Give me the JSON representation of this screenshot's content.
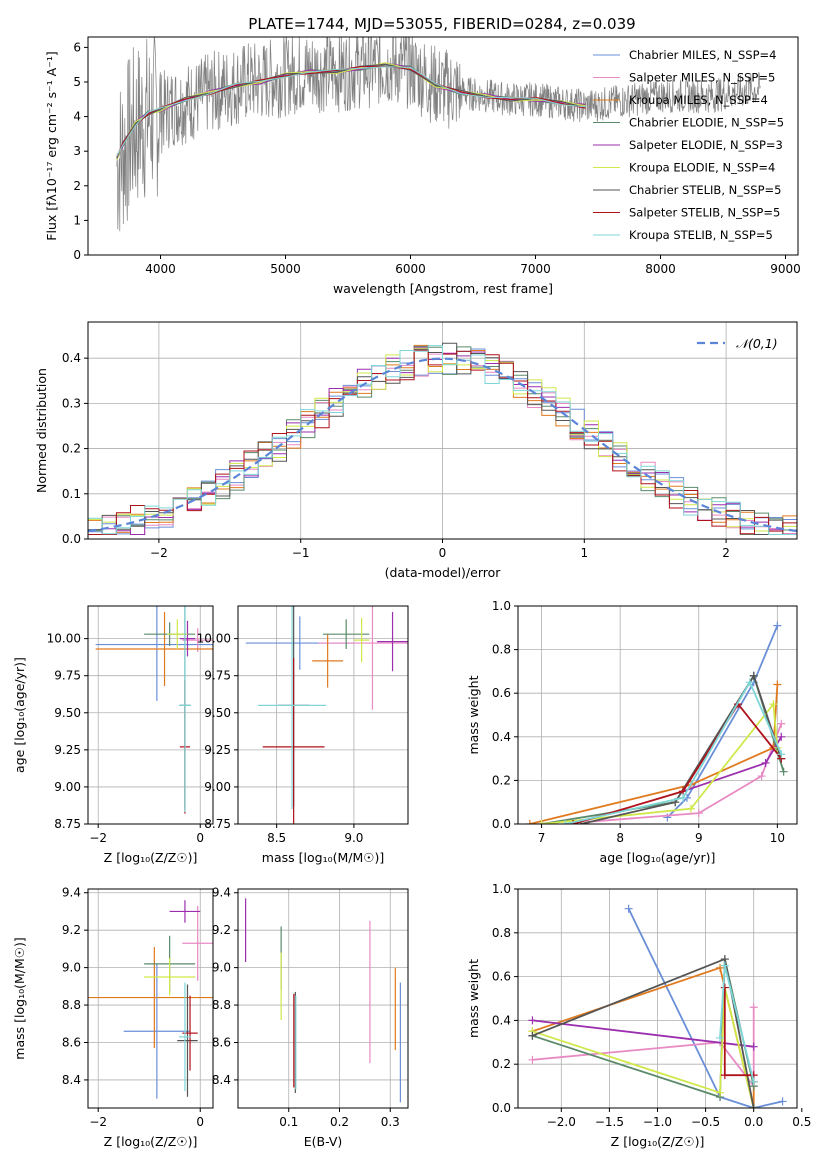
{
  "page_title": "PLATE=1744, MJD=53055, FIBERID=0284, z=0.039",
  "colors": [
    "#6a8fd8",
    "#e88ac4",
    "#e07a1e",
    "#5a8a6a",
    "#9b2fae",
    "#d0e84a",
    "#555555",
    "#b0121b",
    "#7fd6d8"
  ],
  "chart_data": [
    {
      "id": "spectrum",
      "type": "line",
      "title": "PLATE=1744, MJD=53055, FIBERID=0284, z=0.039",
      "xlabel": "wavelength [Angstrom, rest frame]",
      "ylabel": "Flux [fλ10⁻¹⁷ erg cm⁻² s⁻¹ A⁻¹]",
      "xlim": [
        3420,
        9100
      ],
      "ylim": [
        0,
        6.3
      ],
      "xticks": [
        4000,
        5000,
        6000,
        7000,
        8000,
        9000
      ],
      "xtick_labels": [
        "4000",
        "5000",
        "6000",
        "7000",
        "8000",
        "9000"
      ],
      "yticks": [
        0,
        1,
        2,
        3,
        4,
        5,
        6
      ],
      "ytick_labels": [
        "0",
        "1",
        "2",
        "3",
        "4",
        "5",
        "6"
      ],
      "legend": [
        "Chabrier MILES, N_SSP=4",
        "Salpeter MILES, N_SSP=5",
        "Kroupa MILES, N_SSP=4",
        "Chabrier ELODIE, N_SSP=5",
        "Salpeter ELODIE, N_SSP=3",
        "Kroupa ELODIE, N_SSP=4",
        "Chabrier STELIB, N_SSP=5",
        "Salpeter STELIB, N_SSP=5",
        "Kroupa STELIB, N_SSP=5"
      ],
      "legend_placement": "top-right",
      "data_color": "#808080",
      "data_x": [
        3650,
        3700,
        3800,
        3900,
        4000,
        4100,
        4200,
        4300,
        4400,
        4500,
        4600,
        4700,
        4800,
        4900,
        5000,
        5200,
        5400,
        5600,
        5800,
        6000,
        6200,
        6400,
        6600,
        6800,
        7000,
        7200,
        7400,
        7600,
        7800,
        8000,
        8200,
        8400,
        8600,
        8800
      ],
      "data_y": [
        2.6,
        3.0,
        3.7,
        4.0,
        4.1,
        4.3,
        4.4,
        4.5,
        4.7,
        4.8,
        4.9,
        5.0,
        5.0,
        5.1,
        5.2,
        5.3,
        5.3,
        5.4,
        5.5,
        5.4,
        4.9,
        4.7,
        4.6,
        4.5,
        4.5,
        4.4,
        4.3,
        4.4,
        4.5,
        4.6,
        4.6,
        4.6,
        4.7,
        4.8
      ],
      "model_x": [
        3650,
        3700,
        3800,
        3900,
        4000,
        4200,
        4400,
        4600,
        4800,
        5000,
        5200,
        5400,
        5600,
        5800,
        6000,
        6200,
        6400,
        6600,
        6800,
        7000,
        7200,
        7400
      ],
      "model_y": [
        2.8,
        3.2,
        3.8,
        4.1,
        4.2,
        4.5,
        4.7,
        4.9,
        5.0,
        5.2,
        5.3,
        5.3,
        5.4,
        5.5,
        5.4,
        4.9,
        4.7,
        4.6,
        4.5,
        4.5,
        4.4,
        4.3
      ]
    },
    {
      "id": "residuals",
      "type": "bar",
      "xlabel": "(data-model)/error",
      "ylabel": "Normed distribution",
      "xlim": [
        -2.5,
        2.5
      ],
      "ylim": [
        0,
        0.48
      ],
      "grid": true,
      "xticks": [
        -2,
        -1,
        0,
        1,
        2
      ],
      "xtick_labels": [
        "−2",
        "−1",
        "0",
        "1",
        "2"
      ],
      "yticks": [
        0,
        0.1,
        0.2,
        0.3,
        0.4
      ],
      "ytick_labels": [
        "0.0",
        "0.1",
        "0.2",
        "0.3",
        "0.4"
      ],
      "legend": [
        "𝒩(0,1)"
      ],
      "legend_placement": "top-right",
      "bin_width": 0.1
    },
    {
      "id": "age_vs_Z",
      "type": "scatter",
      "xlabel": "Z [log₁₀(Z/Z☉)]",
      "ylabel": "age  [log₁₀(age/yr)]",
      "xlim": [
        -2.2,
        0.25
      ],
      "ylim": [
        8.75,
        10.22
      ],
      "grid": true,
      "xticks": [
        -2,
        0
      ],
      "xtick_labels": [
        "−2",
        "0"
      ],
      "yticks": [
        8.75,
        9.0,
        9.25,
        9.5,
        9.75,
        10.0
      ],
      "ytick_labels": [
        "8.75",
        "9.00",
        "9.25",
        "9.50",
        "9.75",
        "10.00"
      ],
      "points": [
        {
          "x": -0.85,
          "y": 9.96,
          "xerr": 1.2,
          "yerr": 0.38,
          "c": 0
        },
        {
          "x": -0.05,
          "y": 9.99,
          "xerr": 0.3,
          "yerr": 0.08,
          "c": 1
        },
        {
          "x": -0.7,
          "y": 9.93,
          "xerr": 1.35,
          "yerr": 0.25,
          "c": 2
        },
        {
          "x": -0.6,
          "y": 10.03,
          "xerr": 0.5,
          "yerr": 0.08,
          "c": 3
        },
        {
          "x": -0.25,
          "y": 10.0,
          "xerr": 0.15,
          "yerr": 0.12,
          "c": 4
        },
        {
          "x": -0.45,
          "y": 10.03,
          "xerr": 0.2,
          "yerr": 0.1,
          "c": 5
        },
        {
          "x": -0.3,
          "y": 9.55,
          "xerr": 0.1,
          "yerr": 0.7,
          "c": 6
        },
        {
          "x": -0.3,
          "y": 9.27,
          "xerr": 0.1,
          "yerr": 0.45,
          "c": 7
        },
        {
          "x": -0.3,
          "y": 9.55,
          "xerr": 0.12,
          "yerr": 0.72,
          "c": 8
        }
      ]
    },
    {
      "id": "age_vs_mass",
      "type": "scatter",
      "xlabel": "mass [log₁₀(M/M☉)]",
      "xlim": [
        8.25,
        9.35
      ],
      "ylim": [
        8.75,
        10.22
      ],
      "grid": true,
      "xticks": [
        8.5,
        9.0
      ],
      "xtick_labels": [
        "8.5",
        "9.0"
      ],
      "yticks": [
        8.75,
        9.0,
        9.25,
        9.5,
        9.75,
        10.0
      ],
      "ytick_labels": [
        "8.75",
        "9.00",
        "9.25",
        "9.50",
        "9.75",
        "10.00"
      ],
      "points": [
        {
          "x": 8.65,
          "y": 9.97,
          "xerr": 0.35,
          "yerr": 0.18,
          "c": 0
        },
        {
          "x": 9.12,
          "y": 9.97,
          "xerr": 0.35,
          "yerr": 0.45,
          "c": 1
        },
        {
          "x": 8.83,
          "y": 9.85,
          "xerr": 0.1,
          "yerr": 0.18,
          "c": 2
        },
        {
          "x": 8.95,
          "y": 10.03,
          "xerr": 0.15,
          "yerr": 0.1,
          "c": 3
        },
        {
          "x": 9.25,
          "y": 9.98,
          "xerr": 0.1,
          "yerr": 0.2,
          "c": 4
        },
        {
          "x": 9.05,
          "y": 9.99,
          "xerr": 0.05,
          "yerr": 0.15,
          "c": 5
        },
        {
          "x": 8.61,
          "y": 9.55,
          "xerr": 0.1,
          "yerr": 0.68,
          "c": 6
        },
        {
          "x": 8.61,
          "y": 9.27,
          "xerr": 0.2,
          "yerr": 0.6,
          "c": 7
        },
        {
          "x": 8.6,
          "y": 9.55,
          "xerr": 0.22,
          "yerr": 0.7,
          "c": 8
        }
      ]
    },
    {
      "id": "massweight_vs_age",
      "type": "line",
      "xlabel": "age  [log₁₀(age/yr)]",
      "ylabel": "mass weight",
      "xlim": [
        6.7,
        10.25
      ],
      "ylim": [
        0,
        1.0
      ],
      "grid": true,
      "xticks": [
        7,
        8,
        9,
        10
      ],
      "xtick_labels": [
        "7",
        "8",
        "9",
        "10"
      ],
      "yticks": [
        0,
        0.2,
        0.4,
        0.6,
        0.8,
        1.0
      ],
      "ytick_labels": [
        "0.0",
        "0.2",
        "0.4",
        "0.6",
        "0.8",
        "1.0"
      ],
      "series": [
        {
          "c": 0,
          "x": [
            8.6,
            8.85,
            9.7,
            10.0
          ],
          "y": [
            0.03,
            0.12,
            0.65,
            0.91
          ]
        },
        {
          "c": 1,
          "x": [
            7.6,
            9.0,
            9.8,
            10.05
          ],
          "y": [
            0.01,
            0.05,
            0.22,
            0.46
          ]
        },
        {
          "c": 2,
          "x": [
            6.85,
            8.9,
            9.95,
            10.0
          ],
          "y": [
            0.0,
            0.18,
            0.35,
            0.64
          ]
        },
        {
          "c": 3,
          "x": [
            7.0,
            8.7,
            9.7,
            10.08
          ],
          "y": [
            0.0,
            0.1,
            0.68,
            0.24
          ]
        },
        {
          "c": 4,
          "x": [
            8.8,
            9.85,
            10.05
          ],
          "y": [
            0.15,
            0.28,
            0.4
          ]
        },
        {
          "c": 5,
          "x": [
            7.0,
            8.9,
            9.95,
            10.0
          ],
          "y": [
            0.0,
            0.07,
            0.55,
            0.35
          ]
        },
        {
          "c": 6,
          "x": [
            7.5,
            8.7,
            9.7,
            10.05
          ],
          "y": [
            0.0,
            0.1,
            0.68,
            0.3
          ]
        },
        {
          "c": 7,
          "x": [
            7.4,
            8.8,
            9.5,
            10.05
          ],
          "y": [
            0.0,
            0.15,
            0.55,
            0.3
          ]
        },
        {
          "c": 8,
          "x": [
            7.3,
            8.8,
            9.65,
            10.05
          ],
          "y": [
            0.0,
            0.12,
            0.65,
            0.32
          ]
        }
      ]
    },
    {
      "id": "mass_vs_Z",
      "type": "scatter",
      "xlabel": "Z [log₁₀(Z/Z☉)]",
      "ylabel": "mass [log₁₀(M/M☉)]",
      "xlim": [
        -2.2,
        0.25
      ],
      "ylim": [
        8.25,
        9.42
      ],
      "grid": true,
      "xticks": [
        -2,
        0
      ],
      "xtick_labels": [
        "−2",
        "0"
      ],
      "yticks": [
        8.4,
        8.6,
        8.8,
        9.0,
        9.2,
        9.4
      ],
      "ytick_labels": [
        "8.4",
        "8.6",
        "8.8",
        "9.0",
        "9.2",
        "9.4"
      ],
      "points": [
        {
          "x": -0.85,
          "y": 8.66,
          "xerr": 0.65,
          "yerr": 0.36,
          "c": 0
        },
        {
          "x": -0.05,
          "y": 9.13,
          "xerr": 0.3,
          "yerr": 0.2,
          "c": 1
        },
        {
          "x": -0.9,
          "y": 8.84,
          "xerr": 1.3,
          "yerr": 0.27,
          "c": 2
        },
        {
          "x": -0.6,
          "y": 9.02,
          "xerr": 0.5,
          "yerr": 0.15,
          "c": 3
        },
        {
          "x": -0.3,
          "y": 9.3,
          "xerr": 0.3,
          "yerr": 0.06,
          "c": 4
        },
        {
          "x": -0.6,
          "y": 8.95,
          "xerr": 0.5,
          "yerr": 0.1,
          "c": 5
        },
        {
          "x": -0.25,
          "y": 8.61,
          "xerr": 0.2,
          "yerr": 0.3,
          "c": 6
        },
        {
          "x": -0.2,
          "y": 8.65,
          "xerr": 0.15,
          "yerr": 0.2,
          "c": 7
        },
        {
          "x": -0.3,
          "y": 8.63,
          "xerr": 0.12,
          "yerr": 0.29,
          "c": 8
        }
      ]
    },
    {
      "id": "mass_vs_ebv",
      "type": "scatter",
      "xlabel": "E(B-V)",
      "xlim": [
        0.0,
        0.335
      ],
      "ylim": [
        8.25,
        9.42
      ],
      "grid": true,
      "xticks": [
        0.1,
        0.2,
        0.3
      ],
      "xtick_labels": [
        "0.1",
        "0.2",
        "0.3"
      ],
      "yticks": [
        8.4,
        8.6,
        8.8,
        9.0,
        9.2,
        9.4
      ],
      "ytick_labels": [
        "8.4",
        "8.6",
        "8.8",
        "9.0",
        "9.2",
        "9.4"
      ],
      "points": [
        {
          "x": 0.32,
          "y": 8.6,
          "yerr": 0.32,
          "c": 0
        },
        {
          "x": 0.26,
          "y": 8.87,
          "yerr": 0.38,
          "c": 1
        },
        {
          "x": 0.31,
          "y": 8.78,
          "yerr": 0.22,
          "c": 2
        },
        {
          "x": 0.085,
          "y": 9.05,
          "yerr": 0.17,
          "c": 3
        },
        {
          "x": 0.015,
          "y": 9.2,
          "yerr": 0.17,
          "c": 4
        },
        {
          "x": 0.085,
          "y": 8.9,
          "yerr": 0.18,
          "c": 5
        },
        {
          "x": 0.113,
          "y": 8.6,
          "yerr": 0.27,
          "c": 6
        },
        {
          "x": 0.11,
          "y": 8.61,
          "yerr": 0.25,
          "c": 7
        },
        {
          "x": 0.114,
          "y": 8.6,
          "yerr": 0.25,
          "c": 8
        }
      ]
    },
    {
      "id": "massweight_vs_Z",
      "type": "line",
      "xlabel": "Z [log₁₀(Z/Z☉)]",
      "ylabel": "mass weight",
      "xlim": [
        -2.45,
        0.45
      ],
      "ylim": [
        0,
        1.0
      ],
      "grid": true,
      "xticks": [
        -2.0,
        -1.5,
        -1.0,
        -0.5,
        0.0,
        0.5
      ],
      "xtick_labels": [
        "−2.0",
        "−1.5",
        "−1.0",
        "−0.5",
        "0.0",
        "0.5"
      ],
      "yticks": [
        0,
        0.2,
        0.4,
        0.6,
        0.8,
        1.0
      ],
      "ytick_labels": [
        "0.0",
        "0.2",
        "0.4",
        "0.6",
        "0.8",
        "1.0"
      ],
      "series": [
        {
          "c": 0,
          "x": [
            -1.3,
            -0.35,
            0.0,
            0.3
          ],
          "y": [
            0.91,
            0.05,
            0.0,
            0.03
          ]
        },
        {
          "c": 1,
          "x": [
            -2.3,
            -0.35,
            0.0,
            0.0
          ],
          "y": [
            0.22,
            0.3,
            0.1,
            0.46
          ]
        },
        {
          "c": 2,
          "x": [
            -2.3,
            -0.35,
            0.0,
            0.0
          ],
          "y": [
            0.35,
            0.64,
            0.0,
            0.12
          ]
        },
        {
          "c": 3,
          "x": [
            -2.3,
            -0.35,
            -0.3,
            0.0
          ],
          "y": [
            0.33,
            0.05,
            0.68,
            0.1
          ]
        },
        {
          "c": 4,
          "x": [
            -2.3,
            0.0
          ],
          "y": [
            0.4,
            0.28
          ]
        },
        {
          "c": 5,
          "x": [
            -2.3,
            -0.35,
            -0.3,
            0.0
          ],
          "y": [
            0.35,
            0.07,
            0.55,
            0.0
          ]
        },
        {
          "c": 6,
          "x": [
            -2.3,
            -0.3,
            0.0
          ],
          "y": [
            0.33,
            0.68,
            0.0
          ]
        },
        {
          "c": 7,
          "x": [
            -0.3,
            -0.3,
            0.0
          ],
          "y": [
            0.55,
            0.15,
            0.15
          ]
        },
        {
          "c": 8,
          "x": [
            -0.35,
            -0.3,
            0.0
          ],
          "y": [
            0.32,
            0.65,
            0.12
          ]
        }
      ]
    }
  ]
}
